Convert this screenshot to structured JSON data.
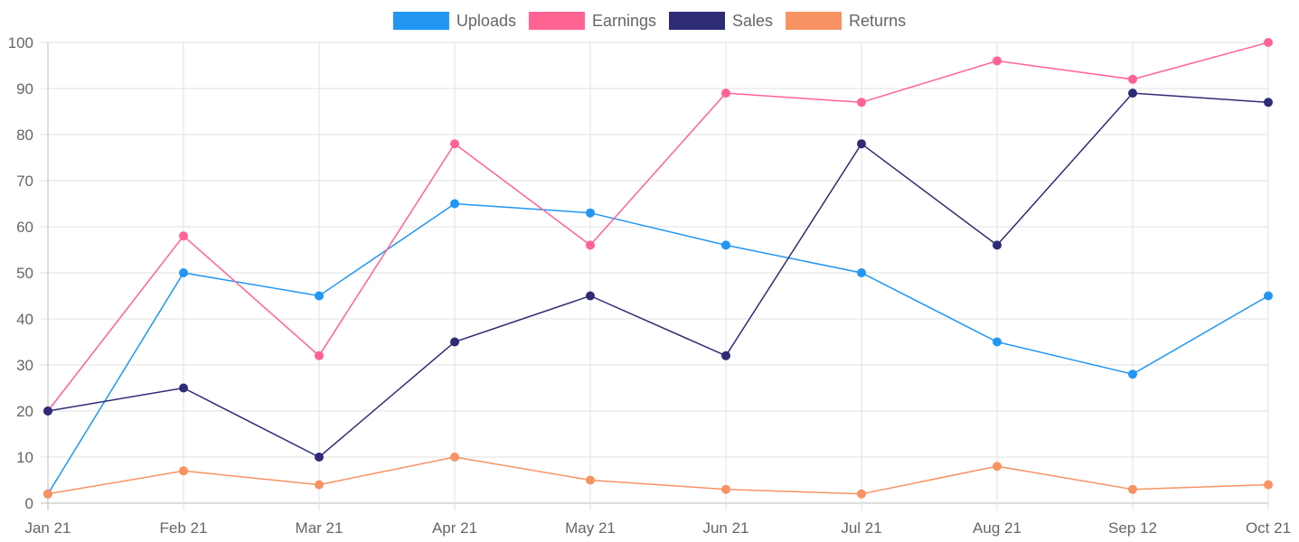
{
  "chart_data": {
    "type": "line",
    "title": "",
    "xlabel": "",
    "ylabel": "",
    "ylim": [
      0,
      100
    ],
    "y_ticks": [
      0,
      10,
      20,
      30,
      40,
      50,
      60,
      70,
      80,
      90,
      100
    ],
    "grid": true,
    "legend_position": "top-center",
    "categories": [
      "Jan 21",
      "Feb 21",
      "Mar 21",
      "Apr 21",
      "May 21",
      "Jun 21",
      "Jul 21",
      "Aug 21",
      "Sep 12",
      "Oct 21"
    ],
    "series": [
      {
        "name": "Uploads",
        "color": "#2196f3",
        "values": [
          2,
          50,
          45,
          65,
          63,
          56,
          50,
          35,
          28,
          45
        ]
      },
      {
        "name": "Earnings",
        "color": "#ff6392",
        "values": [
          20,
          58,
          32,
          78,
          56,
          89,
          87,
          96,
          92,
          100
        ]
      },
      {
        "name": "Sales",
        "color": "#2e2c75",
        "values": [
          20,
          25,
          10,
          35,
          45,
          32,
          78,
          56,
          89,
          87
        ]
      },
      {
        "name": "Returns",
        "color": "#f79263",
        "values": [
          2,
          7,
          4,
          10,
          5,
          3,
          2,
          8,
          3,
          4
        ]
      }
    ]
  }
}
